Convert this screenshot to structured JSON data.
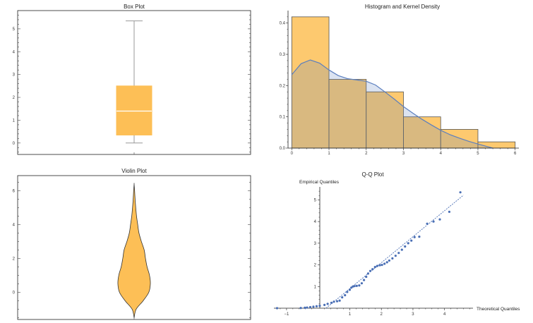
{
  "chart_data": [
    {
      "type": "box",
      "title": "Box Plot",
      "ylim": [
        -0.5,
        5.8
      ],
      "yticks": [
        0,
        1,
        2,
        3,
        4,
        5
      ],
      "stats": {
        "min": 0,
        "q1": 0.35,
        "median": 1.4,
        "q3": 2.5,
        "max": 5.35
      },
      "color": "#FDBF56"
    },
    {
      "type": "histogram",
      "title": "Histogram and Kernel Density",
      "bins": [
        [
          0,
          1
        ],
        [
          1,
          2
        ],
        [
          2,
          3
        ],
        [
          3,
          4
        ],
        [
          4,
          5
        ],
        [
          5,
          6
        ]
      ],
      "values": [
        0.42,
        0.22,
        0.18,
        0.1,
        0.06,
        0.02
      ],
      "xlim": [
        -0.1,
        6.1
      ],
      "ylim": [
        0,
        0.44
      ],
      "xticks": [
        0,
        1,
        2,
        3,
        4,
        5,
        6
      ],
      "yticks": [
        0.0,
        0.1,
        0.2,
        0.3,
        0.4
      ],
      "ytick_labels": [
        "0.0",
        "0.1",
        "0.2",
        "0.3",
        "0.4"
      ],
      "density_x": [
        0,
        0.25,
        0.5,
        0.75,
        1.0,
        1.25,
        1.5,
        1.75,
        2.0,
        2.25,
        2.5,
        2.75,
        3.0,
        3.25,
        3.5,
        3.75,
        4.0,
        4.25,
        4.5,
        4.75,
        5.0,
        5.25,
        5.4
      ],
      "density_y": [
        0.235,
        0.27,
        0.282,
        0.272,
        0.25,
        0.232,
        0.222,
        0.218,
        0.214,
        0.202,
        0.18,
        0.157,
        0.133,
        0.112,
        0.092,
        0.074,
        0.057,
        0.043,
        0.032,
        0.022,
        0.013,
        0.005,
        0.0
      ],
      "bar_color": "#FDBF56",
      "density_color": "#5B7FBF"
    },
    {
      "type": "violin",
      "title": "Violin Plot",
      "ylim": [
        -1.6,
        6.9
      ],
      "yticks": [
        0,
        2,
        4,
        6
      ],
      "profile_y": [
        -1.5,
        -1.0,
        -0.5,
        0.0,
        0.5,
        1.0,
        1.5,
        2.0,
        2.5,
        3.0,
        3.5,
        4.0,
        4.5,
        5.0,
        5.5,
        6.0,
        6.4
      ],
      "profile_halfwidth": [
        0.0,
        0.12,
        0.55,
        0.9,
        1.0,
        0.95,
        0.8,
        0.7,
        0.62,
        0.45,
        0.3,
        0.22,
        0.15,
        0.1,
        0.06,
        0.03,
        0.0
      ],
      "color": "#FDBF56"
    },
    {
      "type": "scatter",
      "title": "Q-Q Plot",
      "xlabel": "Theoretical Quantiles",
      "ylabel": "Empirical Quantiles",
      "xlim": [
        -1.4,
        4.9
      ],
      "ylim": [
        -0.3,
        5.6
      ],
      "xticks": [
        -1,
        1,
        2,
        3,
        4
      ],
      "xtick_labels": [
        "−1",
        "1",
        "2",
        "3",
        "4"
      ],
      "yticks": [
        1,
        2,
        3,
        4,
        5
      ],
      "x": [
        -1.3,
        -0.55,
        -0.42,
        -0.35,
        -0.25,
        -0.15,
        -0.05,
        0.05,
        0.2,
        0.3,
        0.42,
        0.5,
        0.6,
        0.68,
        0.76,
        0.85,
        0.92,
        1.0,
        1.05,
        1.1,
        1.15,
        1.22,
        1.3,
        1.38,
        1.45,
        1.52,
        1.58,
        1.65,
        1.72,
        1.8,
        1.87,
        1.95,
        2.02,
        2.1,
        2.18,
        2.25,
        2.35,
        2.45,
        2.55,
        2.65,
        2.75,
        2.85,
        2.95,
        3.05,
        3.2,
        3.45,
        3.65,
        3.85,
        4.15,
        4.5
      ],
      "y": [
        0.0,
        0.01,
        0.02,
        0.03,
        0.05,
        0.07,
        0.09,
        0.11,
        0.15,
        0.2,
        0.25,
        0.3,
        0.32,
        0.35,
        0.5,
        0.6,
        0.75,
        0.85,
        0.95,
        1.0,
        1.02,
        1.03,
        1.05,
        1.15,
        1.3,
        1.45,
        1.6,
        1.72,
        1.8,
        1.9,
        1.95,
        1.98,
        2.0,
        2.05,
        2.12,
        2.2,
        2.3,
        2.42,
        2.55,
        2.7,
        2.85,
        3.0,
        3.12,
        3.28,
        3.3,
        3.9,
        4.0,
        4.1,
        4.45,
        5.35
      ],
      "ref_line": {
        "slope": 1.2,
        "intercept": -0.3
      },
      "color": "#4A6FB5"
    }
  ]
}
